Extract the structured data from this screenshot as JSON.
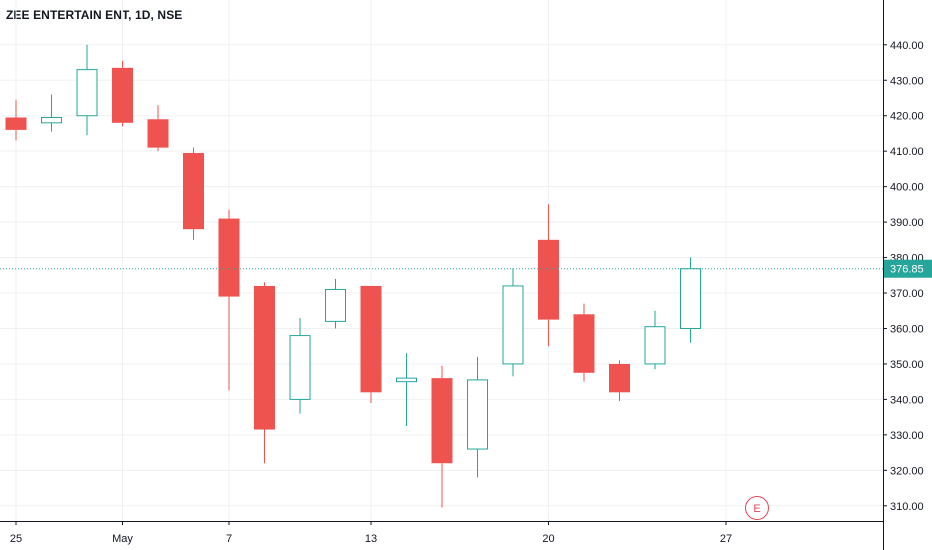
{
  "header": {
    "title": "ZEE ENTERTAIN ENT, 1D, NSE"
  },
  "chart_data": {
    "type": "candlestick",
    "title": "ZEE ENTERTAIN ENT, 1D, NSE",
    "symbol": "ZEE ENTERTAIN ENT",
    "interval": "1D",
    "exchange": "NSE",
    "ylim": [
      303,
      448
    ],
    "y_ticks": [
      310,
      320,
      330,
      340,
      350,
      360,
      370,
      380,
      390,
      400,
      410,
      420,
      430,
      440
    ],
    "y_tick_labels": [
      "310.00",
      "320.00",
      "330.00",
      "340.00",
      "350.00",
      "360.00",
      "370.00",
      "380.00",
      "390.00",
      "400.00",
      "410.00",
      "420.00",
      "430.00",
      "440.00"
    ],
    "x_tick_labels": [
      {
        "label": "25",
        "bar": 0
      },
      {
        "label": "May",
        "bar": 3
      },
      {
        "label": "7",
        "bar": 6
      },
      {
        "label": "13",
        "bar": 10
      },
      {
        "label": "20",
        "bar": 15
      },
      {
        "label": "27",
        "bar": 20
      }
    ],
    "last_price": 376.85,
    "last_price_label": "376.85",
    "colors": {
      "up": "#26a69a",
      "down": "#ef5350",
      "grid": "#eef0f3",
      "axis": "#131722",
      "price_line": "#26a69a"
    },
    "candles": [
      {
        "date": "Apr 25",
        "open": 419.5,
        "high": 424.5,
        "low": 413,
        "close": 416
      },
      {
        "date": "Apr 26",
        "open": 418,
        "high": 426,
        "low": 415.5,
        "close": 419.5
      },
      {
        "date": "Apr 29",
        "open": 420,
        "high": 440,
        "low": 414.5,
        "close": 433
      },
      {
        "date": "May 2",
        "open": 433.5,
        "high": 435.5,
        "low": 417,
        "close": 418
      },
      {
        "date": "May 3",
        "open": 419,
        "high": 423,
        "low": 410,
        "close": 411
      },
      {
        "date": "May 6",
        "open": 409.5,
        "high": 411,
        "low": 385,
        "close": 388
      },
      {
        "date": "May 7",
        "open": 391,
        "high": 393.5,
        "low": 342.5,
        "close": 369
      },
      {
        "date": "May 8",
        "open": 372,
        "high": 373,
        "low": 322,
        "close": 331.5
      },
      {
        "date": "May 9",
        "open": 340,
        "high": 363,
        "low": 336,
        "close": 358
      },
      {
        "date": "May 10",
        "open": 362,
        "high": 374,
        "low": 360,
        "close": 371
      },
      {
        "date": "May 13",
        "open": 372,
        "high": 372,
        "low": 339,
        "close": 342
      },
      {
        "date": "May 14",
        "open": 345,
        "high": 353,
        "low": 332.5,
        "close": 346
      },
      {
        "date": "May 15",
        "open": 346,
        "high": 349.5,
        "low": 309.5,
        "close": 322
      },
      {
        "date": "May 16",
        "open": 326,
        "high": 352,
        "low": 318,
        "close": 345.5
      },
      {
        "date": "May 17",
        "open": 350,
        "high": 377,
        "low": 346.5,
        "close": 372
      },
      {
        "date": "May 20",
        "open": 385,
        "high": 395,
        "low": 355,
        "close": 362.5
      },
      {
        "date": "May 21",
        "open": 364,
        "high": 367,
        "low": 345,
        "close": 347.5
      },
      {
        "date": "May 22",
        "open": 350,
        "high": 351,
        "low": 339.5,
        "close": 342
      },
      {
        "date": "May 23",
        "open": 350,
        "high": 365,
        "low": 348.5,
        "close": 360.5
      },
      {
        "date": "May 24",
        "open": 360,
        "high": 380,
        "low": 356,
        "close": 376.85
      }
    ],
    "markers": [
      {
        "label": "E",
        "bar": 21,
        "type": "earnings"
      }
    ],
    "grid": true
  }
}
